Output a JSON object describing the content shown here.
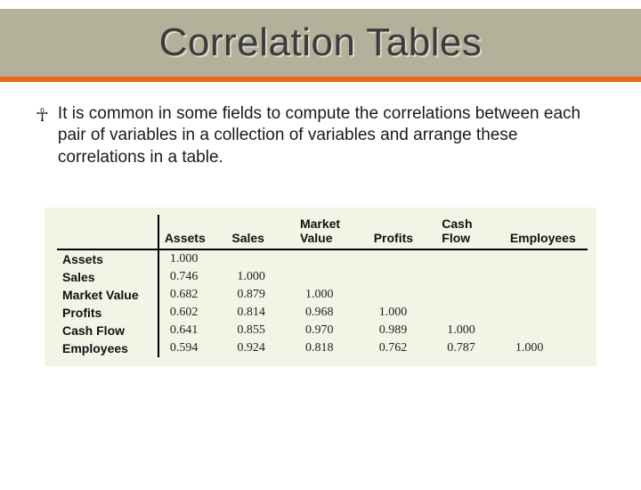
{
  "title": "Correlation Tables",
  "bullet": "It is common in some fields to compute the correlations between each pair of variables in a collection of variables and arrange these correlations in a table.",
  "table": {
    "type": "table",
    "background_color": "#f3f4e5",
    "border_color": "#000000",
    "header_font": "Arial",
    "body_font": "Georgia",
    "columns": [
      "Assets",
      "Sales",
      "Market Value",
      "Profits",
      "Cash Flow",
      "Employees"
    ],
    "row_labels": [
      "Assets",
      "Sales",
      "Market Value",
      "Profits",
      "Cash Flow",
      "Employees"
    ],
    "rows": [
      [
        "1.000",
        "",
        "",
        "",
        "",
        ""
      ],
      [
        "0.746",
        "1.000",
        "",
        "",
        "",
        ""
      ],
      [
        "0.682",
        "0.879",
        "1.000",
        "",
        "",
        ""
      ],
      [
        "0.602",
        "0.814",
        "0.968",
        "1.000",
        "",
        ""
      ],
      [
        "0.641",
        "0.855",
        "0.970",
        "0.989",
        "1.000",
        ""
      ],
      [
        "0.594",
        "0.924",
        "0.818",
        "0.762",
        "0.787",
        "1.000"
      ]
    ]
  },
  "colors": {
    "title_band": "#b3b19a",
    "accent_bar": "#e8681f",
    "page_bg": "#ffffff",
    "text": "#1a1a1a"
  }
}
